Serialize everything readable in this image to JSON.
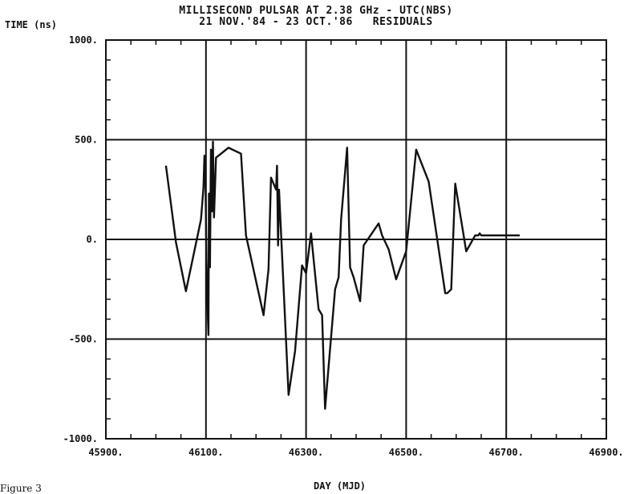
{
  "chart_data": {
    "type": "line",
    "title": "MILLISECOND PULSAR AT 2.38 GHz - UTC(NBS)",
    "subtitle": "21 NOV.'84 - 23 OCT.'86   RESIDUALS",
    "xlabel": "DAY (MJD)",
    "ylabel": "TIME (ns)",
    "xlim": [
      45900,
      46900
    ],
    "ylim": [
      -1000,
      1000
    ],
    "grid": true,
    "x_ticks": [
      45900,
      46100,
      46300,
      46500,
      46700,
      46900
    ],
    "x_tick_labels": [
      "45900.",
      "46100.",
      "46300.",
      "46500.",
      "46700.",
      "46900."
    ],
    "y_ticks": [
      1000,
      500,
      0,
      -500,
      -1000
    ],
    "y_tick_labels": [
      "1000.",
      "500.",
      "0.",
      "-500.",
      "-1000."
    ],
    "series": [
      {
        "x": [
          46020,
          46040,
          46060,
          46090,
          46095,
          46097,
          46099,
          46101,
          46103,
          46105,
          46106,
          46108,
          46110,
          46112,
          46114,
          46116,
          46120,
          46145,
          46170,
          46180,
          46215,
          46225,
          46230,
          46240,
          46242,
          46244,
          46246,
          46265,
          46278,
          46292,
          46300,
          46310,
          46325,
          46332,
          46338,
          46358,
          46365,
          46370,
          46382,
          46388,
          46395,
          46408,
          46415,
          46445,
          46452,
          46465,
          46480,
          46500,
          46520,
          46545,
          46578,
          46582,
          46590,
          46598,
          46620,
          46638,
          46644,
          46647,
          46650,
          46653,
          46665,
          46670,
          46680,
          46683,
          46692,
          46697,
          46700,
          46705,
          46715,
          46727
        ],
        "y": [
          370,
          -15,
          -260,
          100,
          260,
          420,
          290,
          -100,
          -330,
          -480,
          230,
          -140,
          450,
          140,
          490,
          110,
          410,
          460,
          430,
          20,
          -380,
          -150,
          310,
          250,
          370,
          -30,
          250,
          -780,
          -560,
          -130,
          -170,
          30,
          -350,
          -380,
          -850,
          -250,
          -190,
          100,
          460,
          -140,
          -190,
          -310,
          -30,
          80,
          20,
          -50,
          -200,
          -60,
          450,
          290,
          -270,
          -270,
          -250,
          280,
          -60,
          20,
          20,
          30,
          20,
          20,
          20,
          20,
          20,
          20,
          20,
          20,
          20,
          20,
          20,
          20
        ]
      }
    ]
  },
  "caption": "Figure 3"
}
